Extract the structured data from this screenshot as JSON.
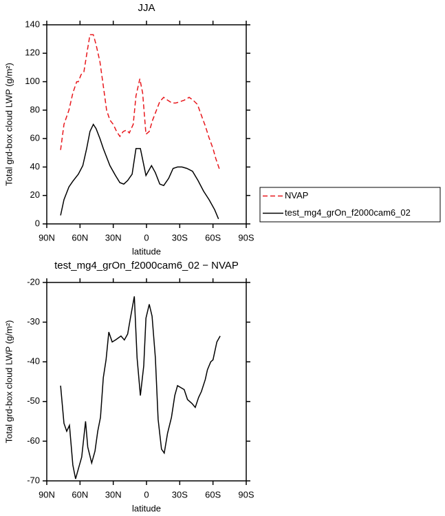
{
  "chart_data": [
    {
      "type": "line",
      "title": "JJA",
      "xlabel": "latitude",
      "ylabel": "Total grd-box cloud LWP (g/m²)",
      "xlim": [
        90,
        -90
      ],
      "ylim": [
        0,
        140
      ],
      "xticks": [
        {
          "value": 90,
          "label": "90N"
        },
        {
          "value": 60,
          "label": "60N"
        },
        {
          "value": 30,
          "label": "30N"
        },
        0,
        {
          "value": -30,
          "label": "30S"
        },
        {
          "value": -60,
          "label": "60S"
        },
        {
          "value": -90,
          "label": "90S"
        }
      ],
      "yticks": [
        0,
        20,
        40,
        60,
        80,
        100,
        120,
        140
      ],
      "legend": "right",
      "series": [
        {
          "name": "NVAP",
          "color": "#e8161b",
          "line_style": "dashed",
          "x": [
            77.5,
            74.5,
            70,
            66.5,
            63,
            61.5,
            59,
            56.5,
            54,
            51,
            48,
            45.5,
            42,
            39,
            36,
            33,
            30,
            27,
            24,
            21,
            18,
            15.5,
            12,
            9.5,
            6,
            3.5,
            0.5,
            -2.5,
            -5.5,
            -9,
            -12,
            -15.5,
            -19,
            -23,
            -26.5,
            -30.5,
            -34,
            -38.5,
            -42,
            -46,
            -49,
            -53,
            -56.5,
            -60,
            -62.5,
            -66.5
          ],
          "values": [
            52,
            70,
            80,
            92,
            100,
            100,
            105,
            107,
            119,
            133,
            133,
            126,
            114,
            97,
            80,
            73,
            70,
            65,
            61.5,
            65,
            66,
            64,
            70,
            90,
            102,
            92,
            63,
            65,
            73,
            80,
            86,
            89,
            87,
            85,
            85,
            86,
            87,
            89,
            87,
            84,
            77.5,
            69,
            60.5,
            53,
            46,
            37
          ]
        },
        {
          "name": "test_mg4_grOn_f2000cam6_02",
          "color": "#000000",
          "line_style": "solid",
          "x": [
            77.5,
            74.5,
            70,
            66.5,
            61.5,
            57.5,
            54,
            51,
            48,
            45.5,
            42,
            39,
            33,
            28,
            24,
            20.5,
            17,
            13,
            9.5,
            5.5,
            0.5,
            -4.5,
            -8,
            -12,
            -15.5,
            -20,
            -24,
            -28,
            -32,
            -36.5,
            -41.5,
            -46.5,
            -51.5,
            -56.5,
            -61.5,
            -65
          ],
          "values": [
            6,
            17,
            26,
            30,
            35,
            41,
            53,
            65,
            70,
            67,
            60,
            53,
            41,
            34,
            29,
            28,
            30.5,
            35,
            53,
            53,
            34,
            41,
            36,
            28,
            27,
            32,
            39,
            40,
            40,
            39,
            37,
            30.5,
            23,
            17,
            10,
            3.5
          ]
        }
      ]
    },
    {
      "type": "line",
      "title": "test_mg4_grOn_f2000cam6_02 − NVAP",
      "xlabel": "latitude",
      "ylabel": "Total grd-box cloud LWP (g/m²)",
      "xlim": [
        90,
        -90
      ],
      "ylim": [
        -70,
        -20
      ],
      "xticks": [
        {
          "value": 90,
          "label": "90N"
        },
        {
          "value": 60,
          "label": "60N"
        },
        {
          "value": 30,
          "label": "30N"
        },
        0,
        {
          "value": -30,
          "label": "30S"
        },
        {
          "value": -60,
          "label": "60S"
        },
        {
          "value": -90,
          "label": "90S"
        }
      ],
      "yticks": [
        -70,
        -60,
        -50,
        -40,
        -30,
        -20
      ],
      "series": [
        {
          "color": "#000000",
          "line_style": "solid",
          "x": [
            77.5,
            74.5,
            72,
            69.5,
            66.5,
            64,
            61.5,
            58.5,
            55,
            53,
            49.5,
            46.5,
            44,
            41.5,
            39,
            36.5,
            34,
            31,
            28,
            23,
            20,
            17,
            14.5,
            11,
            8.5,
            5.5,
            2.5,
            0.5,
            -2.5,
            -5,
            -8,
            -10.5,
            -13.5,
            -16,
            -19,
            -22.5,
            -25.5,
            -28,
            -31,
            -34,
            -37,
            -41,
            -44,
            -47,
            -49.5,
            -53,
            -55,
            -58,
            -60,
            -63.5,
            -66.5
          ],
          "values": [
            -46,
            -55.5,
            -57.5,
            -56,
            -66,
            -69.5,
            -67,
            -64,
            -55,
            -61.5,
            -65.5,
            -62.5,
            -57.5,
            -54,
            -44,
            -39.5,
            -32.5,
            -35,
            -34.5,
            -33.5,
            -34.5,
            -33,
            -29,
            -23.5,
            -39,
            -48.5,
            -41,
            -29,
            -25.5,
            -28.5,
            -39,
            -54.5,
            -62,
            -63,
            -58,
            -54,
            -48.5,
            -46,
            -46.5,
            -47,
            -49.5,
            -50.5,
            -51.5,
            -49,
            -47.5,
            -44.5,
            -42,
            -40,
            -39.5,
            -35,
            -33.5
          ]
        }
      ]
    }
  ]
}
